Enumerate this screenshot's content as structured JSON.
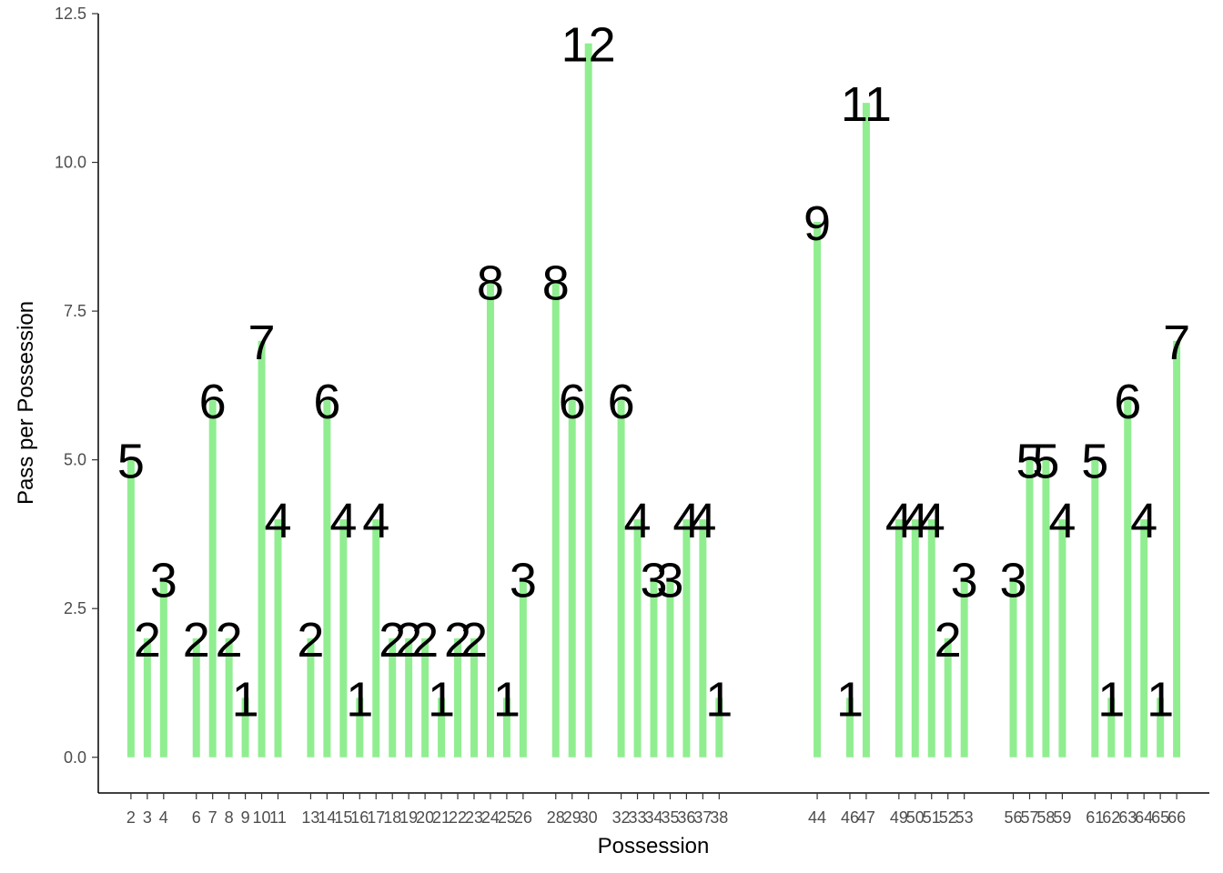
{
  "chart_data": {
    "type": "bar",
    "title": "",
    "xlabel": "Possession",
    "ylabel": "Pass per Possession",
    "ylim": [
      -0.6,
      12.5
    ],
    "xlim": [
      0,
      68
    ],
    "yticks": [
      0.0,
      2.5,
      5.0,
      7.5,
      10.0,
      12.5
    ],
    "ytick_labels": [
      "0.0",
      "2.5",
      "5.0",
      "7.5",
      "10.0",
      "12.5"
    ],
    "grid": false,
    "legend": "none",
    "bar_color": "#90EE90",
    "x": [
      2,
      3,
      4,
      6,
      7,
      8,
      9,
      10,
      11,
      13,
      14,
      15,
      16,
      17,
      18,
      19,
      20,
      21,
      22,
      23,
      24,
      25,
      26,
      28,
      29,
      30,
      32,
      33,
      34,
      35,
      36,
      37,
      38,
      44,
      46,
      47,
      49,
      50,
      51,
      52,
      53,
      56,
      57,
      58,
      59,
      61,
      62,
      63,
      64,
      65,
      66
    ],
    "values": [
      5,
      2,
      3,
      2,
      6,
      2,
      1,
      7,
      4,
      2,
      6,
      4,
      1,
      4,
      2,
      2,
      2,
      1,
      2,
      2,
      8,
      1,
      3,
      8,
      6,
      12,
      6,
      4,
      3,
      3,
      4,
      4,
      1,
      9,
      1,
      11,
      4,
      4,
      4,
      2,
      3,
      3,
      5,
      5,
      4,
      5,
      1,
      6,
      4,
      1,
      7
    ],
    "data_labels": [
      "5",
      "2",
      "3",
      "2",
      "6",
      "2",
      "1",
      "7",
      "4",
      "2",
      "6",
      "4",
      "1",
      "4",
      "2",
      "2",
      "2",
      "1",
      "2",
      "2",
      "8",
      "1",
      "3",
      "8",
      "6",
      "12",
      "6",
      "4",
      "3",
      "3",
      "4",
      "4",
      "1",
      "9",
      "1",
      "11",
      "4",
      "4",
      "4",
      "2",
      "3",
      "3",
      "5",
      "5",
      "4",
      "5",
      "1",
      "6",
      "4",
      "1",
      "7"
    ]
  }
}
